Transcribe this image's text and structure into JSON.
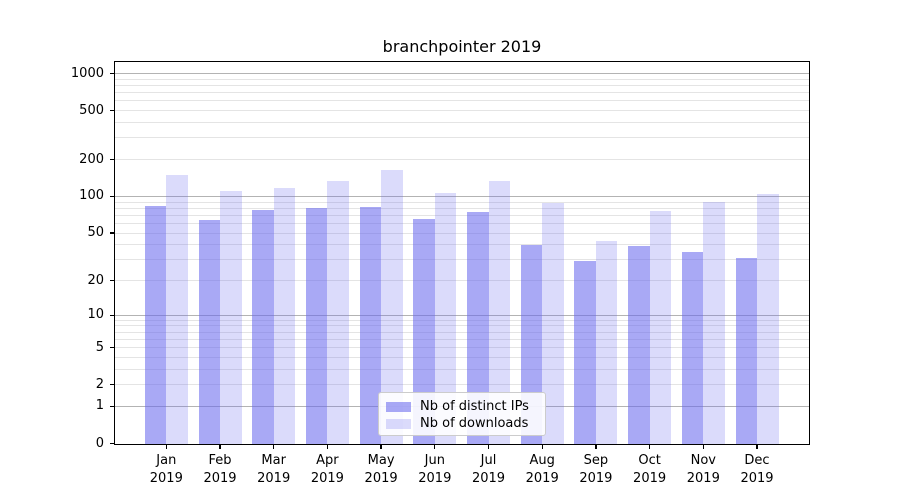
{
  "title": "branchpointer 2019",
  "chart_data": {
    "type": "bar",
    "title": "branchpointer 2019",
    "yscale": "log-like (position proportional to log10(value+1), 0 at baseline)",
    "categories": [
      "Jan 2019",
      "Feb 2019",
      "Mar 2019",
      "Apr 2019",
      "May 2019",
      "Jun 2019",
      "Jul 2019",
      "Aug 2019",
      "Sep 2019",
      "Oct 2019",
      "Nov 2019",
      "Dec 2019"
    ],
    "month_labels": [
      "Jan",
      "Feb",
      "Mar",
      "Apr",
      "May",
      "Jun",
      "Jul",
      "Aug",
      "Sep",
      "Oct",
      "Nov",
      "Dec"
    ],
    "year_label": "2019",
    "series": [
      {
        "name": "Nb of distinct IPs",
        "values": [
          83,
          64,
          78,
          80,
          82,
          65,
          74,
          40,
          29,
          39,
          35,
          31
        ],
        "color": "rgba(102,102,238,0.56)"
      },
      {
        "name": "Nb of downloads",
        "values": [
          151,
          110,
          117,
          135,
          165,
          106,
          133,
          88,
          43,
          76,
          90,
          104
        ],
        "color": "rgba(102,102,238,0.235)"
      }
    ],
    "ytick_labels": [
      "1000",
      "500",
      "200",
      "100",
      "50",
      "20",
      "10",
      "5",
      "2",
      "1",
      "0"
    ],
    "ytick_values": [
      1000,
      500,
      200,
      100,
      50,
      20,
      10,
      5,
      2,
      1,
      0
    ],
    "major_gridline_values": [
      1,
      10,
      100,
      1000
    ],
    "minor_gridline_values": [
      2,
      3,
      4,
      5,
      6,
      7,
      8,
      9,
      20,
      30,
      40,
      50,
      60,
      70,
      80,
      90,
      200,
      300,
      400,
      500,
      600,
      700,
      800,
      900
    ],
    "ylim": [
      0,
      1260
    ],
    "grid": true,
    "legend": {
      "position": "lower center",
      "labels": [
        "Nb of distinct IPs",
        "Nb of downloads"
      ]
    }
  },
  "colors": {
    "bar_base": "#6666ee",
    "bar_distinct_ips": "rgba(102,102,238,0.56)",
    "bar_downloads": "rgba(102,102,238,0.235)",
    "grid_major": "#b3b3b3",
    "grid_minor": "#e4e4e4",
    "axis_frame": "#000000",
    "background": "#ffffff"
  }
}
